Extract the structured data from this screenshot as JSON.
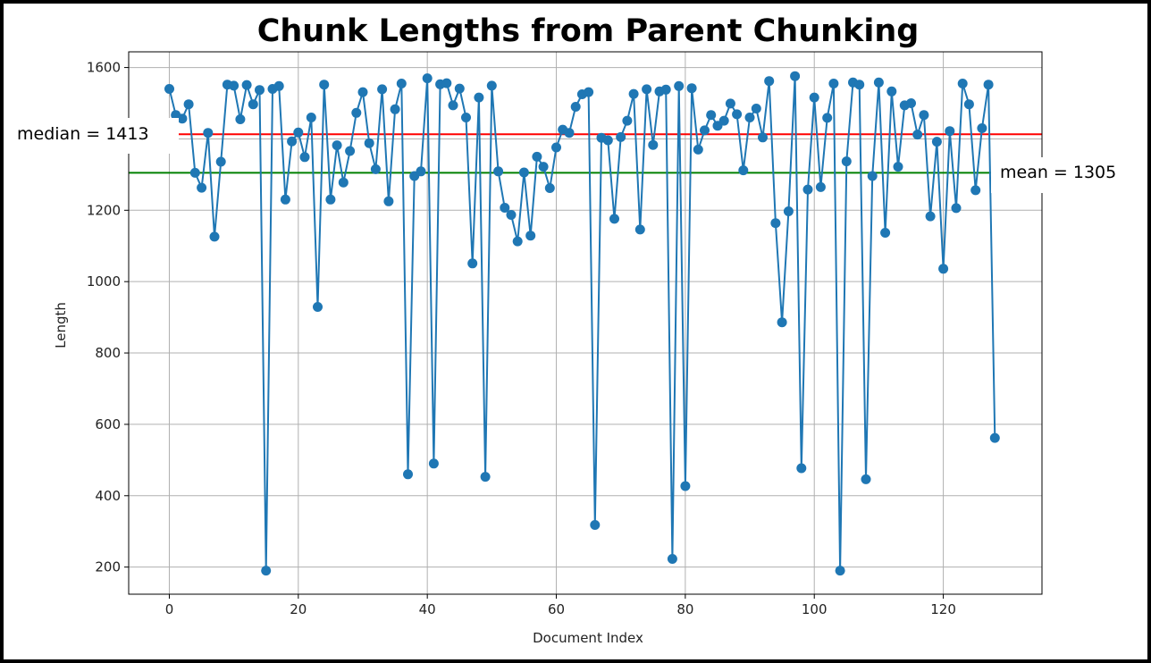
{
  "chart_data": {
    "type": "line",
    "title": "Chunk Lengths from Parent Chunking",
    "xlabel": "Document Index",
    "ylabel": "Length",
    "xlim": [
      -6.3,
      135.3
    ],
    "ylim": [
      124,
      1644
    ],
    "xticks": [
      0,
      20,
      40,
      60,
      80,
      100,
      120
    ],
    "yticks": [
      200,
      400,
      600,
      800,
      1000,
      1200,
      1400,
      1600
    ],
    "grid": true,
    "series_color": "#1f77b4",
    "marker": "circle",
    "values": [
      1540,
      1467,
      1457,
      1497,
      1305,
      1263,
      1417,
      1126,
      1336,
      1552,
      1549,
      1455,
      1551,
      1497,
      1537,
      190,
      1540,
      1548,
      1230,
      1393,
      1418,
      1349,
      1460,
      929,
      1552,
      1230,
      1382,
      1278,
      1366,
      1473,
      1531,
      1388,
      1315,
      1539,
      1225,
      1483,
      1555,
      460,
      1296,
      1309,
      1570,
      490,
      1553,
      1556,
      1494,
      1541,
      1460,
      1051,
      1516,
      453,
      1549,
      1309,
      1207,
      1187,
      1113,
      1306,
      1129,
      1350,
      1322,
      1262,
      1376,
      1426,
      1417,
      1490,
      1525,
      1531,
      318,
      1403,
      1396,
      1176,
      1405,
      1451,
      1526,
      1146,
      1539,
      1383,
      1533,
      1538,
      223,
      1548,
      427,
      1542,
      1370,
      1424,
      1467,
      1437,
      1451,
      1499,
      1469,
      1312,
      1460,
      1485,
      1404,
      1562,
      1164,
      886,
      1197,
      1576,
      477,
      1258,
      1516,
      1265,
      1459,
      1555,
      190,
      1337,
      1558,
      1552,
      446,
      1296,
      1558,
      1137,
      1533,
      1322,
      1494,
      1500,
      1412,
      1467,
      1183,
      1392,
      1036,
      1422,
      1206,
      1555,
      1497,
      1256,
      1430,
      1552,
      562
    ],
    "median": {
      "value": 1413,
      "label": "median = 1413",
      "color": "#ff0000"
    },
    "mean": {
      "value": 1305,
      "label": "mean = 1305",
      "color": "#008000"
    }
  }
}
